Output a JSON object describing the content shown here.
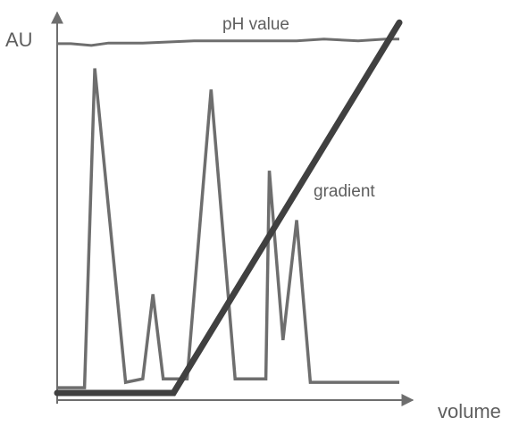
{
  "chart_data": {
    "type": "line",
    "title": "",
    "xlabel": "volume",
    "ylabel": "AU",
    "annotations": {
      "ph_label": "pH value",
      "gradient_label": "gradient"
    },
    "grid": false,
    "legend": "none",
    "colors": {
      "axes": "#6e6e6e",
      "absorbance": "#6e6e6e",
      "ph": "#6e6e6e",
      "gradient": "#404040",
      "text": "#5e5e5e"
    },
    "xlim": [
      0,
      100
    ],
    "ylim": [
      0,
      100
    ],
    "series": [
      {
        "x": [
          0,
          8,
          11,
          20,
          25,
          28,
          31,
          34,
          38,
          45,
          52,
          56,
          61,
          62,
          66,
          70,
          74,
          77,
          81,
          85,
          89,
          100
        ],
        "y": [
          1.5,
          1.5,
          92,
          3,
          4,
          28,
          4,
          4,
          4,
          86,
          4,
          4,
          4,
          63,
          15,
          49,
          3,
          3,
          3,
          3,
          3,
          3
        ]
      },
      {
        "x": [
          0,
          4,
          10,
          15,
          25,
          40,
          58,
          70,
          78,
          88,
          96,
          100
        ],
        "y": [
          99,
          99,
          98.5,
          99.2,
          99.2,
          99.8,
          99.8,
          99.8,
          100.3,
          99.8,
          100.3,
          100.3
        ]
      },
      {
        "x": [
          0,
          34,
          100
        ],
        "y": [
          0,
          0,
          105
        ]
      }
    ]
  }
}
